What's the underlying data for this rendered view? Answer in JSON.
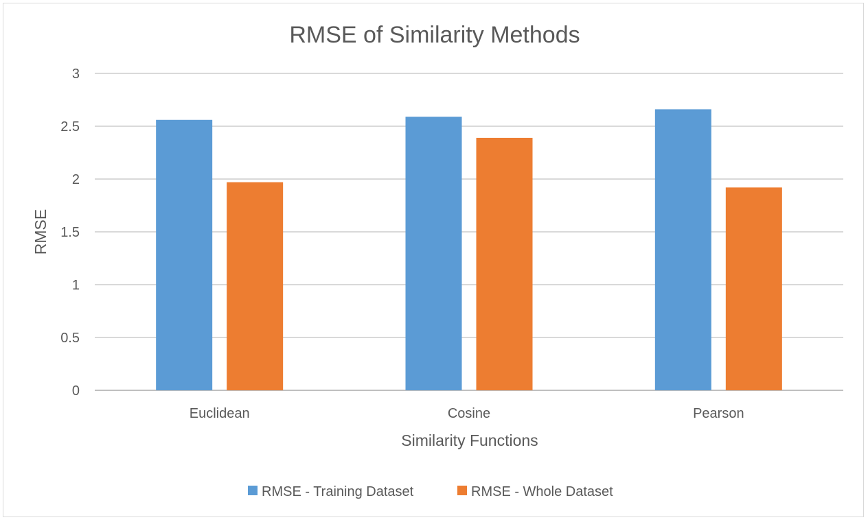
{
  "chart_data": {
    "type": "bar",
    "title": "RMSE of Similarity Methods",
    "xlabel": "Similarity Functions",
    "ylabel": "RMSE",
    "categories": [
      "Euclidean",
      "Cosine",
      "Pearson"
    ],
    "series": [
      {
        "name": "RMSE - Training Dataset",
        "color": "#5b9bd5",
        "values": [
          2.56,
          2.59,
          2.66
        ]
      },
      {
        "name": "RMSE - Whole Dataset",
        "color": "#ed7d31",
        "values": [
          1.97,
          2.39,
          1.92
        ]
      }
    ],
    "ylim": [
      0,
      3
    ],
    "yticks": [
      "0",
      "0.5",
      "1",
      "1.5",
      "2",
      "2.5",
      "3"
    ],
    "grid": true,
    "legend_position": "bottom"
  }
}
